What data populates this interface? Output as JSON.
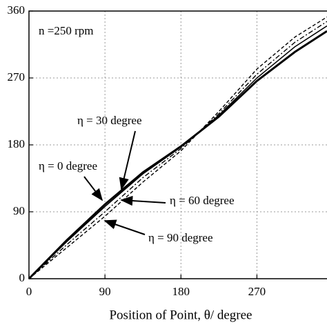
{
  "chart_data": {
    "type": "line",
    "x": [
      0,
      45,
      90,
      135,
      180,
      225,
      270,
      315,
      353
    ],
    "series": [
      {
        "name": "η = 0 degree",
        "color": "#000000",
        "values": [
          0,
          52,
          100,
          143,
          178,
          218,
          266,
          305,
          333
        ]
      },
      {
        "name": "η = 30 degree",
        "color": "#000000",
        "values": [
          0,
          50,
          97,
          141,
          177,
          220,
          270,
          312,
          340
        ]
      },
      {
        "name": "η = 60 degree",
        "color": "#000000",
        "values": [
          0,
          46,
          90,
          136,
          175,
          222,
          275,
          318,
          346
        ]
      },
      {
        "name": "η = 90 degree",
        "color": "#000000",
        "values": [
          0,
          42,
          84,
          130,
          172,
          225,
          282,
          325,
          352
        ]
      }
    ],
    "xlim": [
      0,
      353
    ],
    "ylim": [
      0,
      360
    ],
    "xticks": [
      0,
      90,
      180,
      270
    ],
    "yticks": [
      0,
      90,
      180,
      270,
      360
    ],
    "grid": true,
    "annotation": "n =250 rpm",
    "x_label": "Position of Point, θ/ degree"
  }
}
